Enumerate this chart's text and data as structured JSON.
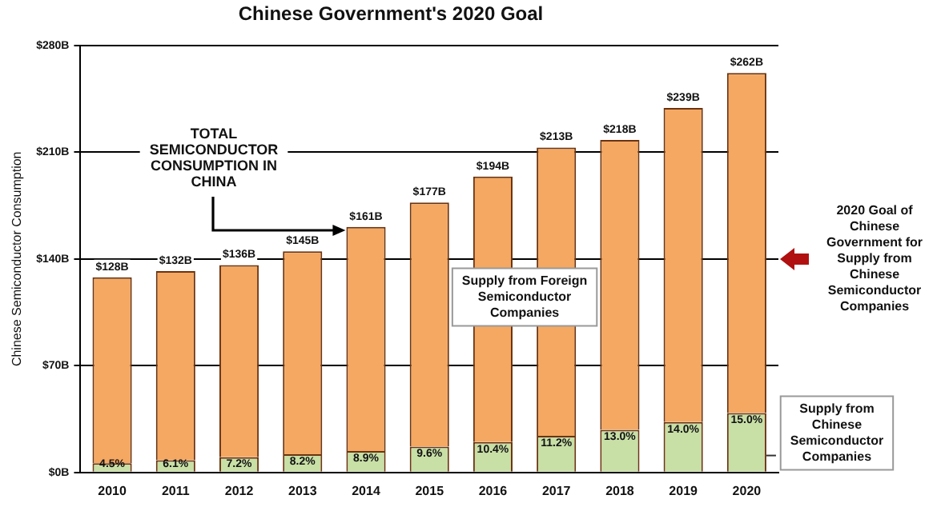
{
  "chart_data": {
    "type": "bar",
    "title": "Chinese Government's 2020 Goal",
    "ylabel": "Chinese Semiconductor Consumption",
    "categories": [
      "2010",
      "2011",
      "2012",
      "2013",
      "2014",
      "2015",
      "2016",
      "2017",
      "2018",
      "2019",
      "2020"
    ],
    "stacked": true,
    "series": [
      {
        "name": "Supply from Chinese Semiconductor Companies",
        "color": "#c8dfa6",
        "values": [
          6,
          8,
          10,
          12,
          14,
          17,
          20,
          24,
          28,
          33,
          39
        ]
      },
      {
        "name": "Supply from Foreign Semiconductor Companies",
        "color": "#f5a862",
        "values": [
          122,
          124,
          126,
          133,
          147,
          160,
          174,
          189,
          190,
          206,
          223
        ]
      }
    ],
    "totals": [
      "$128B",
      "$132B",
      "$136B",
      "$145B",
      "$161B",
      "$177B",
      "$194B",
      "$213B",
      "$218B",
      "$239B",
      "$262B"
    ],
    "ylim": [
      0,
      280
    ],
    "yticks": [
      {
        "value": 0,
        "label": "$0B"
      },
      {
        "value": 70,
        "label": "$70B"
      },
      {
        "value": 140,
        "label": "$140B"
      },
      {
        "value": 210,
        "label": "$210B"
      },
      {
        "value": 280,
        "label": "$280B"
      }
    ],
    "grid": "y",
    "legend": false,
    "annotations": [
      "TOTAL SEMICONDUCTOR CONSUMPTION IN CHINA",
      "2020 Goal of Chinese Government for Supply from Chinese Semiconductor Companies",
      {
        "text": "4.5%",
        "x": "2010",
        "y": 6
      },
      {
        "text": "6.1%",
        "x": "2011",
        "y": 8
      },
      {
        "text": "7.2%",
        "x": "2012",
        "y": 10
      },
      {
        "text": "8.2%",
        "x": "2013",
        "y": 12
      },
      {
        "text": "8.9%",
        "x": "2014",
        "y": 14
      },
      {
        "text": "9.6%",
        "x": "2015",
        "y": 17
      },
      {
        "text": "10.4%",
        "x": "2016",
        "y": 20
      },
      {
        "text": "11.2%",
        "x": "2017",
        "y": 24
      },
      {
        "text": "13.0%",
        "x": "2018",
        "y": 28
      },
      {
        "text": "14.0%",
        "x": "2019",
        "y": 33
      },
      {
        "text": "15.0%",
        "x": "2020",
        "y": 39
      }
    ]
  }
}
